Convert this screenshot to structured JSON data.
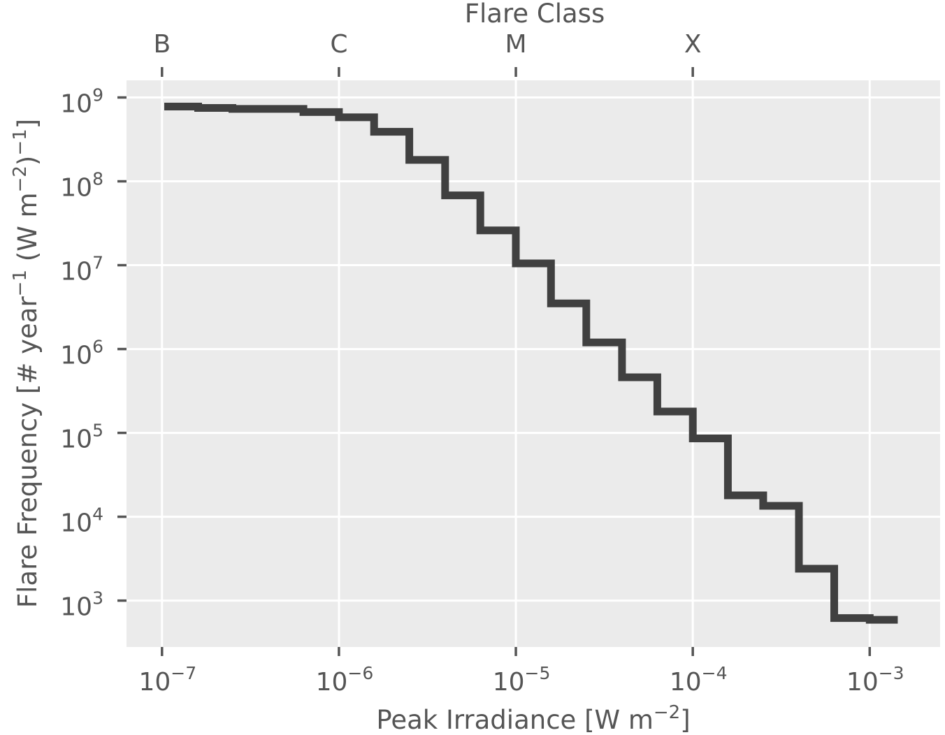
{
  "chart_data": {
    "type": "line",
    "drawstyle": "steps",
    "xscale": "log",
    "yscale": "log",
    "xlabel": "Peak Irradiance [W m",
    "xlabel_sup": "−2",
    "xlabel_suffix": "]",
    "ylabel_parts": [
      "Flare Frequency [# year",
      "−1",
      " (W m",
      "−2",
      ")",
      "−1",
      "]"
    ],
    "top_axis_label": "Flare Class",
    "top_ticks": [
      {
        "label": "B",
        "x": 1e-07
      },
      {
        "label": "C",
        "x": 1e-06
      },
      {
        "label": "M",
        "x": 1e-05
      },
      {
        "label": "X",
        "x": 0.0001
      }
    ],
    "xlim": [
      6.3e-08,
      0.0025
    ],
    "ylim": [
      280,
      1600000000.0
    ],
    "x_ticks": [
      {
        "base": "10",
        "exp": "−7",
        "value": 1e-07
      },
      {
        "base": "10",
        "exp": "−6",
        "value": 1e-06
      },
      {
        "base": "10",
        "exp": "−5",
        "value": 1e-05
      },
      {
        "base": "10",
        "exp": "−4",
        "value": 0.0001
      },
      {
        "base": "10",
        "exp": "−3",
        "value": 0.001
      }
    ],
    "y_ticks": [
      {
        "base": "10",
        "exp": "3",
        "value": 1000.0
      },
      {
        "base": "10",
        "exp": "4",
        "value": 10000.0
      },
      {
        "base": "10",
        "exp": "5",
        "value": 100000.0
      },
      {
        "base": "10",
        "exp": "6",
        "value": 1000000.0
      },
      {
        "base": "10",
        "exp": "7",
        "value": 10000000.0
      },
      {
        "base": "10",
        "exp": "8",
        "value": 100000000.0
      },
      {
        "base": "10",
        "exp": "9",
        "value": 1000000000.0
      }
    ],
    "grid": true,
    "series_color": "#404040",
    "background_color": "#ebebeb",
    "edges": [
      1.03e-07,
      1.6e-07,
      2.5e-07,
      4e-07,
      6.3e-07,
      1e-06,
      1.58e-06,
      2.5e-06,
      3.98e-06,
      6.3e-06,
      1e-05,
      1.58e-05,
      2.5e-05,
      3.98e-05,
      6.3e-05,
      0.0001,
      0.000158,
      0.00025,
      0.000398,
      0.00063,
      0.001,
      0.00144
    ],
    "values": [
      780000000.0,
      750000000.0,
      730000000.0,
      730000000.0,
      670000000.0,
      580000000.0,
      390000000.0,
      180000000.0,
      68000000.0,
      26000000.0,
      10500000.0,
      3500000.0,
      1200000.0,
      460000.0,
      180000.0,
      86000.0,
      18000.0,
      13500.0,
      2400.0,
      620,
      590
    ]
  }
}
